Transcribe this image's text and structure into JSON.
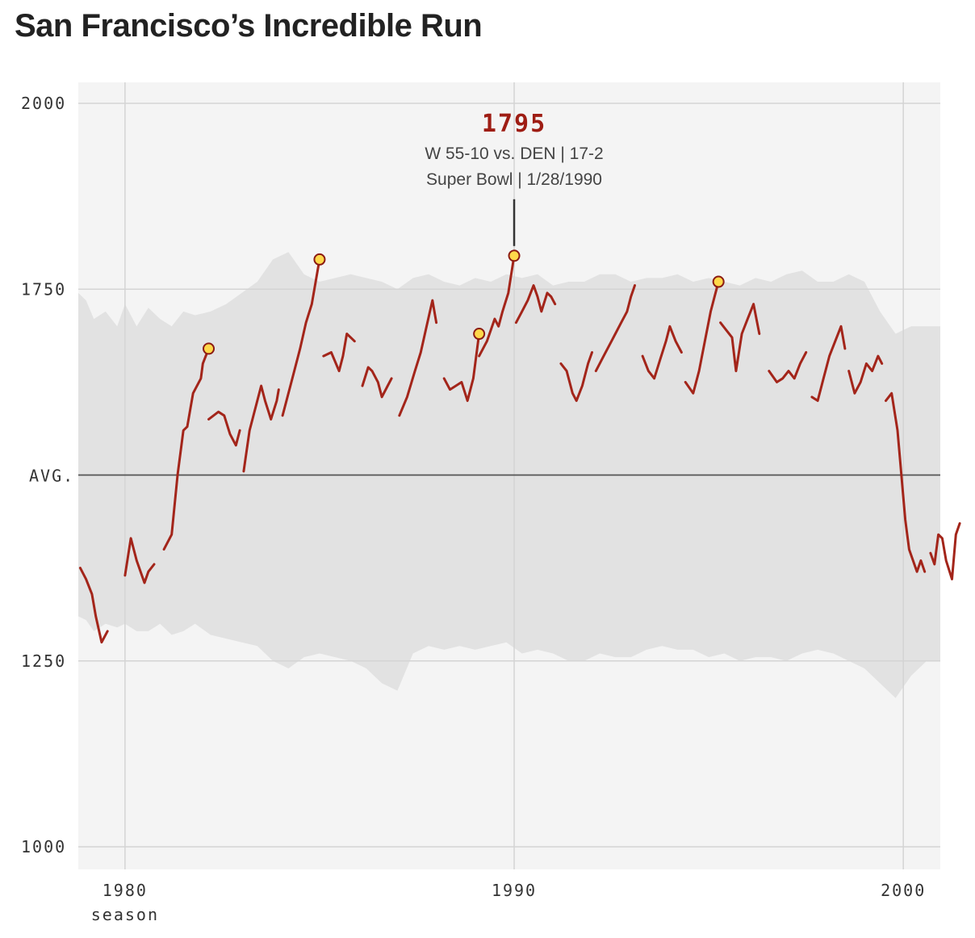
{
  "title": "San Francisco’s Incredible Run",
  "chart_data": {
    "type": "line",
    "xlabel": "season",
    "ylabel": "",
    "xlim": [
      1978.8,
      2000.95
    ],
    "ylim": [
      1000,
      2000
    ],
    "avg_value": 1500,
    "avg_label": "AVG.",
    "x_ticks": [
      {
        "value": 1980,
        "label": "1980"
      },
      {
        "value": 1990,
        "label": "1990"
      },
      {
        "value": 2000,
        "label": "2000"
      }
    ],
    "y_ticks": [
      {
        "value": 2000,
        "label": "2000"
      },
      {
        "value": 1750,
        "label": "1750"
      },
      {
        "value": 1250,
        "label": "1250"
      },
      {
        "value": 1000,
        "label": "1000"
      }
    ],
    "grid": true,
    "colors": {
      "line": "#a3251a",
      "band": "#e2e2e2",
      "plot_bg": "#f4f4f4",
      "marker_fill": "#ffd84a",
      "marker_stroke": "#8b1a12",
      "avg_line": "#555555",
      "grid": "#d4d4d4"
    },
    "league_band": [
      [
        1978.8,
        1310,
        1745
      ],
      [
        1979.0,
        1305,
        1735
      ],
      [
        1979.2,
        1290,
        1710
      ],
      [
        1979.5,
        1300,
        1720
      ],
      [
        1979.8,
        1295,
        1700
      ],
      [
        1980.0,
        1300,
        1730
      ],
      [
        1980.3,
        1290,
        1700
      ],
      [
        1980.6,
        1290,
        1725
      ],
      [
        1980.9,
        1300,
        1710
      ],
      [
        1981.2,
        1285,
        1700
      ],
      [
        1981.5,
        1290,
        1720
      ],
      [
        1981.8,
        1300,
        1715
      ],
      [
        1982.2,
        1285,
        1720
      ],
      [
        1982.6,
        1280,
        1730
      ],
      [
        1983.0,
        1275,
        1745
      ],
      [
        1983.4,
        1270,
        1760
      ],
      [
        1983.8,
        1250,
        1790
      ],
      [
        1984.2,
        1240,
        1800
      ],
      [
        1984.6,
        1255,
        1770
      ],
      [
        1985.0,
        1260,
        1760
      ],
      [
        1985.4,
        1255,
        1765
      ],
      [
        1985.8,
        1250,
        1770
      ],
      [
        1986.2,
        1240,
        1765
      ],
      [
        1986.6,
        1220,
        1760
      ],
      [
        1987.0,
        1210,
        1750
      ],
      [
        1987.4,
        1260,
        1765
      ],
      [
        1987.8,
        1270,
        1770
      ],
      [
        1988.2,
        1265,
        1760
      ],
      [
        1988.6,
        1270,
        1755
      ],
      [
        1989.0,
        1265,
        1765
      ],
      [
        1989.4,
        1270,
        1760
      ],
      [
        1989.8,
        1275,
        1770
      ],
      [
        1990.2,
        1260,
        1765
      ],
      [
        1990.6,
        1265,
        1770
      ],
      [
        1991.0,
        1260,
        1755
      ],
      [
        1991.4,
        1250,
        1760
      ],
      [
        1991.8,
        1250,
        1760
      ],
      [
        1992.2,
        1260,
        1770
      ],
      [
        1992.6,
        1255,
        1770
      ],
      [
        1993.0,
        1255,
        1760
      ],
      [
        1993.4,
        1265,
        1765
      ],
      [
        1993.8,
        1270,
        1765
      ],
      [
        1994.2,
        1265,
        1770
      ],
      [
        1994.6,
        1265,
        1760
      ],
      [
        1995.0,
        1255,
        1765
      ],
      [
        1995.4,
        1260,
        1760
      ],
      [
        1995.8,
        1250,
        1755
      ],
      [
        1996.2,
        1255,
        1765
      ],
      [
        1996.6,
        1255,
        1760
      ],
      [
        1997.0,
        1250,
        1770
      ],
      [
        1997.4,
        1260,
        1775
      ],
      [
        1997.8,
        1265,
        1760
      ],
      [
        1998.2,
        1260,
        1760
      ],
      [
        1998.6,
        1250,
        1770
      ],
      [
        1999.0,
        1240,
        1760
      ],
      [
        1999.4,
        1220,
        1720
      ],
      [
        1999.8,
        1200,
        1690
      ],
      [
        2000.2,
        1230,
        1700
      ],
      [
        2000.6,
        1250,
        1700
      ],
      [
        2000.95,
        1250,
        1700
      ]
    ],
    "series": [
      {
        "values": [
          [
            1978.85,
            1375
          ],
          [
            1979.0,
            1360
          ],
          [
            1979.15,
            1340
          ],
          [
            1979.25,
            1310
          ],
          [
            1979.4,
            1275
          ],
          [
            1979.55,
            1290
          ]
        ]
      },
      {
        "values": [
          [
            1980.0,
            1365
          ],
          [
            1980.15,
            1415
          ],
          [
            1980.3,
            1385
          ],
          [
            1980.5,
            1355
          ],
          [
            1980.6,
            1370
          ],
          [
            1980.75,
            1380
          ]
        ]
      },
      {
        "values": [
          [
            1981.0,
            1400
          ],
          [
            1981.2,
            1420
          ],
          [
            1981.35,
            1500
          ],
          [
            1981.5,
            1560
          ],
          [
            1981.6,
            1565
          ],
          [
            1981.75,
            1610
          ],
          [
            1981.95,
            1630
          ],
          [
            1982.0,
            1650
          ],
          [
            1982.15,
            1670
          ]
        ]
      },
      {
        "values": [
          [
            1982.15,
            1575
          ],
          [
            1982.4,
            1585
          ],
          [
            1982.55,
            1580
          ],
          [
            1982.7,
            1555
          ],
          [
            1982.85,
            1540
          ],
          [
            1982.95,
            1560
          ]
        ]
      },
      {
        "values": [
          [
            1983.05,
            1505
          ],
          [
            1983.2,
            1560
          ],
          [
            1983.35,
            1590
          ],
          [
            1983.5,
            1620
          ],
          [
            1983.6,
            1600
          ],
          [
            1983.75,
            1575
          ],
          [
            1983.9,
            1600
          ],
          [
            1983.95,
            1615
          ]
        ]
      },
      {
        "values": [
          [
            1984.05,
            1580
          ],
          [
            1984.3,
            1630
          ],
          [
            1984.5,
            1670
          ],
          [
            1984.65,
            1705
          ],
          [
            1984.8,
            1730
          ],
          [
            1984.9,
            1760
          ],
          [
            1985.0,
            1790
          ]
        ]
      },
      {
        "values": [
          [
            1985.1,
            1660
          ],
          [
            1985.3,
            1665
          ],
          [
            1985.5,
            1640
          ],
          [
            1985.6,
            1660
          ],
          [
            1985.7,
            1690
          ],
          [
            1985.8,
            1685
          ],
          [
            1985.9,
            1680
          ]
        ]
      },
      {
        "values": [
          [
            1986.1,
            1620
          ],
          [
            1986.25,
            1645
          ],
          [
            1986.35,
            1640
          ],
          [
            1986.5,
            1625
          ],
          [
            1986.6,
            1605
          ],
          [
            1986.75,
            1620
          ],
          [
            1986.85,
            1630
          ]
        ]
      },
      {
        "values": [
          [
            1987.05,
            1580
          ],
          [
            1987.25,
            1605
          ],
          [
            1987.45,
            1640
          ],
          [
            1987.6,
            1665
          ],
          [
            1987.75,
            1700
          ],
          [
            1987.9,
            1735
          ],
          [
            1988.0,
            1705
          ]
        ]
      },
      {
        "values": [
          [
            1988.2,
            1630
          ],
          [
            1988.35,
            1615
          ],
          [
            1988.5,
            1620
          ],
          [
            1988.65,
            1625
          ],
          [
            1988.8,
            1600
          ],
          [
            1988.95,
            1630
          ],
          [
            1989.05,
            1670
          ],
          [
            1989.1,
            1690
          ]
        ]
      },
      {
        "values": [
          [
            1989.1,
            1660
          ],
          [
            1989.3,
            1680
          ],
          [
            1989.5,
            1710
          ],
          [
            1989.6,
            1700
          ],
          [
            1989.7,
            1720
          ],
          [
            1989.85,
            1745
          ],
          [
            1990.0,
            1795
          ]
        ]
      },
      {
        "values": [
          [
            1990.05,
            1705
          ],
          [
            1990.2,
            1720
          ],
          [
            1990.35,
            1735
          ],
          [
            1990.5,
            1755
          ],
          [
            1990.6,
            1740
          ],
          [
            1990.7,
            1720
          ],
          [
            1990.85,
            1745
          ],
          [
            1990.95,
            1740
          ],
          [
            1991.05,
            1730
          ]
        ]
      },
      {
        "values": [
          [
            1991.2,
            1650
          ],
          [
            1991.35,
            1640
          ],
          [
            1991.5,
            1610
          ],
          [
            1991.6,
            1600
          ],
          [
            1991.75,
            1620
          ],
          [
            1991.9,
            1650
          ],
          [
            1992.0,
            1665
          ]
        ]
      },
      {
        "values": [
          [
            1992.1,
            1640
          ],
          [
            1992.3,
            1660
          ],
          [
            1992.5,
            1680
          ],
          [
            1992.6,
            1690
          ],
          [
            1992.75,
            1705
          ],
          [
            1992.9,
            1720
          ],
          [
            1993.0,
            1740
          ],
          [
            1993.1,
            1755
          ]
        ]
      },
      {
        "values": [
          [
            1993.3,
            1660
          ],
          [
            1993.45,
            1640
          ],
          [
            1993.6,
            1630
          ],
          [
            1993.75,
            1655
          ],
          [
            1993.9,
            1680
          ],
          [
            1994.0,
            1700
          ],
          [
            1994.15,
            1680
          ],
          [
            1994.3,
            1665
          ]
        ]
      },
      {
        "values": [
          [
            1994.4,
            1625
          ],
          [
            1994.6,
            1610
          ],
          [
            1994.75,
            1640
          ],
          [
            1994.9,
            1680
          ],
          [
            1995.05,
            1720
          ],
          [
            1995.15,
            1740
          ],
          [
            1995.25,
            1760
          ]
        ]
      },
      {
        "values": [
          [
            1995.3,
            1705
          ],
          [
            1995.45,
            1695
          ],
          [
            1995.6,
            1685
          ],
          [
            1995.7,
            1640
          ],
          [
            1995.85,
            1690
          ],
          [
            1996.0,
            1710
          ],
          [
            1996.15,
            1730
          ],
          [
            1996.3,
            1690
          ]
        ]
      },
      {
        "values": [
          [
            1996.55,
            1640
          ],
          [
            1996.75,
            1625
          ],
          [
            1996.9,
            1630
          ],
          [
            1997.05,
            1640
          ],
          [
            1997.2,
            1630
          ],
          [
            1997.35,
            1650
          ],
          [
            1997.5,
            1665
          ]
        ]
      },
      {
        "values": [
          [
            1997.65,
            1605
          ],
          [
            1997.8,
            1600
          ],
          [
            1997.95,
            1630
          ],
          [
            1998.1,
            1660
          ],
          [
            1998.25,
            1680
          ],
          [
            1998.4,
            1700
          ],
          [
            1998.5,
            1670
          ]
        ]
      },
      {
        "values": [
          [
            1998.6,
            1640
          ],
          [
            1998.75,
            1610
          ],
          [
            1998.9,
            1625
          ],
          [
            1999.05,
            1650
          ],
          [
            1999.2,
            1640
          ],
          [
            1999.35,
            1660
          ],
          [
            1999.45,
            1650
          ]
        ]
      },
      {
        "values": [
          [
            1999.55,
            1600
          ],
          [
            1999.7,
            1610
          ],
          [
            1999.85,
            1560
          ],
          [
            1999.95,
            1500
          ],
          [
            2000.05,
            1440
          ],
          [
            2000.15,
            1400
          ],
          [
            2000.35,
            1370
          ],
          [
            2000.45,
            1385
          ],
          [
            2000.55,
            1370
          ]
        ]
      },
      {
        "values": [
          [
            2000.7,
            1395
          ],
          [
            2000.8,
            1380
          ],
          [
            2000.9,
            1420
          ],
          [
            2001.0,
            1415
          ],
          [
            2001.1,
            1385
          ],
          [
            2001.25,
            1360
          ],
          [
            2001.35,
            1420
          ],
          [
            2001.45,
            1435
          ]
        ]
      }
    ],
    "markers": [
      {
        "x": 1982.15,
        "y": 1670
      },
      {
        "x": 1985.0,
        "y": 1790
      },
      {
        "x": 1989.1,
        "y": 1690
      },
      {
        "x": 1990.0,
        "y": 1795
      },
      {
        "x": 1995.25,
        "y": 1760
      }
    ],
    "annotation": {
      "x": 1990.0,
      "y": 1795,
      "value": "1795",
      "line1": "W 55-10 vs. DEN | 17-2",
      "line2": "Super Bowl | 1/28/1990"
    }
  }
}
